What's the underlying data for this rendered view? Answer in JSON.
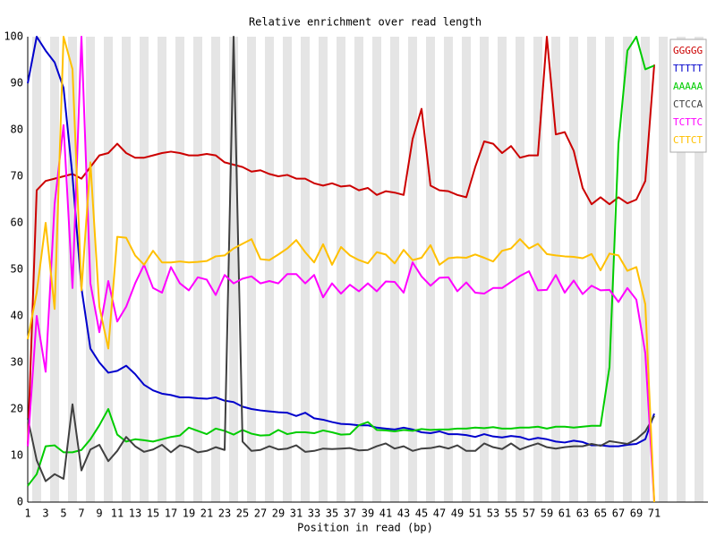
{
  "chart_data": {
    "type": "line",
    "title": "Relative enrichment over read length",
    "x_label": "Position in read (bp)",
    "x": [
      1,
      2,
      3,
      4,
      5,
      6,
      7,
      8,
      9,
      10,
      11,
      12,
      13,
      14,
      15,
      16,
      17,
      18,
      19,
      20,
      21,
      22,
      23,
      24,
      25,
      26,
      27,
      28,
      29,
      30,
      31,
      32,
      33,
      34,
      35,
      36,
      37,
      38,
      39,
      40,
      41,
      42,
      43,
      44,
      45,
      46,
      47,
      48,
      49,
      50,
      51,
      52,
      53,
      54,
      55,
      56,
      57,
      58,
      59,
      60,
      61,
      62,
      63,
      64,
      65,
      66,
      67,
      68,
      69,
      70,
      71
    ],
    "xlim": [
      1,
      77
    ],
    "xticks": [
      1,
      3,
      5,
      7,
      9,
      11,
      13,
      15,
      17,
      19,
      21,
      23,
      25,
      27,
      29,
      31,
      33,
      35,
      37,
      39,
      41,
      43,
      45,
      47,
      49,
      51,
      53,
      55,
      57,
      59,
      61,
      63,
      65,
      67,
      69,
      71
    ],
    "ylim": [
      0,
      100
    ],
    "yticks": [
      0,
      10,
      20,
      30,
      40,
      50,
      60,
      70,
      80,
      90,
      100
    ],
    "grid": false,
    "legend": "top-right",
    "series": [
      {
        "name": "GGGGG",
        "color": "#cc0000",
        "values": [
          12,
          67,
          69,
          69.5,
          70,
          70.5,
          69.5,
          72,
          74.5,
          75,
          77,
          75,
          74,
          74,
          74.5,
          75,
          75.3,
          75,
          74.5,
          74.5,
          74.8,
          74.5,
          73,
          72.5,
          72,
          71,
          71.3,
          70.5,
          70,
          70.3,
          69.5,
          69.5,
          68.5,
          68,
          68.5,
          67.8,
          68,
          67,
          67.5,
          66,
          66.8,
          66.5,
          66,
          78,
          84.5,
          68,
          67,
          66.8,
          66,
          65.5,
          72,
          77.5,
          77,
          75,
          76.5,
          74,
          74.5,
          74.5,
          100,
          79,
          79.5,
          75.5,
          67.5,
          64,
          65.5,
          64,
          65.5,
          64.2,
          65,
          69,
          94
        ]
      },
      {
        "name": "TTTTT",
        "color": "#0000cc",
        "values": [
          90,
          100,
          97,
          94.5,
          89,
          70,
          46,
          33,
          30,
          27.8,
          28.2,
          29.3,
          27.5,
          25.2,
          24,
          23.3,
          23,
          22.5,
          22.5,
          22.3,
          22.2,
          22.5,
          21.8,
          21.5,
          20.5,
          20,
          19.7,
          19.5,
          19.3,
          19.2,
          18.5,
          19.2,
          18,
          17.7,
          17.2,
          16.8,
          16.7,
          16.5,
          16.5,
          16,
          15.8,
          15.6,
          16,
          15.6,
          15,
          14.8,
          15.2,
          14.6,
          14.6,
          14.4,
          14,
          14.6,
          14.1,
          13.9,
          14.2,
          14,
          13.4,
          13.8,
          13.5,
          13,
          12.8,
          13.2,
          12.9,
          12.2,
          12.2,
          12,
          12,
          12.3,
          12.5,
          13.5,
          19
        ]
      },
      {
        "name": "AAAAA",
        "color": "#00cc00",
        "values": [
          3.5,
          6,
          12,
          12.2,
          10.7,
          10.7,
          11.2,
          13.5,
          16.5,
          20,
          14.5,
          13,
          13.5,
          13.3,
          13,
          13.5,
          14,
          14.3,
          16,
          15.3,
          14.6,
          15.8,
          15.3,
          14.5,
          15.5,
          14.7,
          14.3,
          14.4,
          15.5,
          14.6,
          15,
          15,
          14.8,
          15.4,
          15,
          14.5,
          14.6,
          16.5,
          17.2,
          15.5,
          15.4,
          15.2,
          15.5,
          15.3,
          15.7,
          15.5,
          15.6,
          15.6,
          15.8,
          15.8,
          16,
          15.9,
          16.1,
          15.8,
          15.8,
          16,
          16,
          16.2,
          15.8,
          16.2,
          16.2,
          16,
          16.2,
          16.4,
          16.4,
          29,
          77,
          97,
          100,
          93,
          93.8
        ]
      },
      {
        "name": "CTCCA",
        "color": "#404040",
        "values": [
          18,
          9,
          4.5,
          6,
          5,
          21,
          6.8,
          11.3,
          12.3,
          8.8,
          11,
          14,
          12,
          10.8,
          11.3,
          12.3,
          10.7,
          12.2,
          11.7,
          10.7,
          11,
          11.8,
          11.2,
          100,
          13,
          11,
          11.2,
          12,
          11.3,
          11.5,
          12.2,
          10.8,
          11,
          11.5,
          11.4,
          11.5,
          11.6,
          11.1,
          11.2,
          12,
          12.6,
          11.5,
          12,
          11,
          11.5,
          11.6,
          12,
          11.5,
          12.2,
          11,
          11,
          12.6,
          11.8,
          11.4,
          12.6,
          11.3,
          12,
          12.6,
          11.8,
          11.5,
          11.8,
          12,
          12,
          12.5,
          12.1,
          13.1,
          12.8,
          12.5,
          13.5,
          15.2,
          18.5
        ]
      },
      {
        "name": "TCTTC",
        "color": "#ff00ff",
        "values": [
          12,
          40,
          28,
          64,
          81,
          46,
          100,
          47,
          36.5,
          47.5,
          38.8,
          42,
          47,
          51,
          46,
          45,
          50.5,
          47,
          45.5,
          48.3,
          47.8,
          44.5,
          48.8,
          47,
          48,
          48.5,
          47,
          47.5,
          47,
          49,
          49,
          47,
          48.8,
          44,
          47,
          44.8,
          46.7,
          45.3,
          47,
          45.3,
          47.4,
          47.3,
          45,
          51.5,
          48.5,
          46.5,
          48.2,
          48.3,
          45.3,
          47.2,
          45,
          44.8,
          46,
          46,
          47.3,
          48.6,
          49.6,
          45.5,
          45.6,
          48.8,
          45,
          47.6,
          44.7,
          46.5,
          45.5,
          45.6,
          43,
          46,
          43.5,
          32,
          0
        ]
      },
      {
        "name": "CTTCT",
        "color": "#ffc000",
        "values": [
          35,
          45,
          60,
          41.5,
          100,
          93,
          45.5,
          73,
          42,
          33,
          57,
          56.8,
          53,
          51,
          54,
          51.5,
          51.5,
          51.7,
          51.5,
          51.6,
          51.8,
          52.8,
          53,
          54.5,
          55.5,
          56.5,
          52.2,
          52,
          53.2,
          54.5,
          56.3,
          53.7,
          51.5,
          55.4,
          51,
          54.8,
          53,
          52,
          51.3,
          53.7,
          53.2,
          51.3,
          54.2,
          52,
          52.5,
          55.2,
          51,
          52.4,
          52.6,
          52.5,
          53.2,
          52.5,
          51.7,
          54,
          54.5,
          56.5,
          54.5,
          55.5,
          53.3,
          53,
          52.8,
          52.7,
          52.4,
          53.3,
          49.8,
          53.4,
          53,
          49.7,
          50.5,
          42.5,
          0
        ]
      }
    ]
  }
}
